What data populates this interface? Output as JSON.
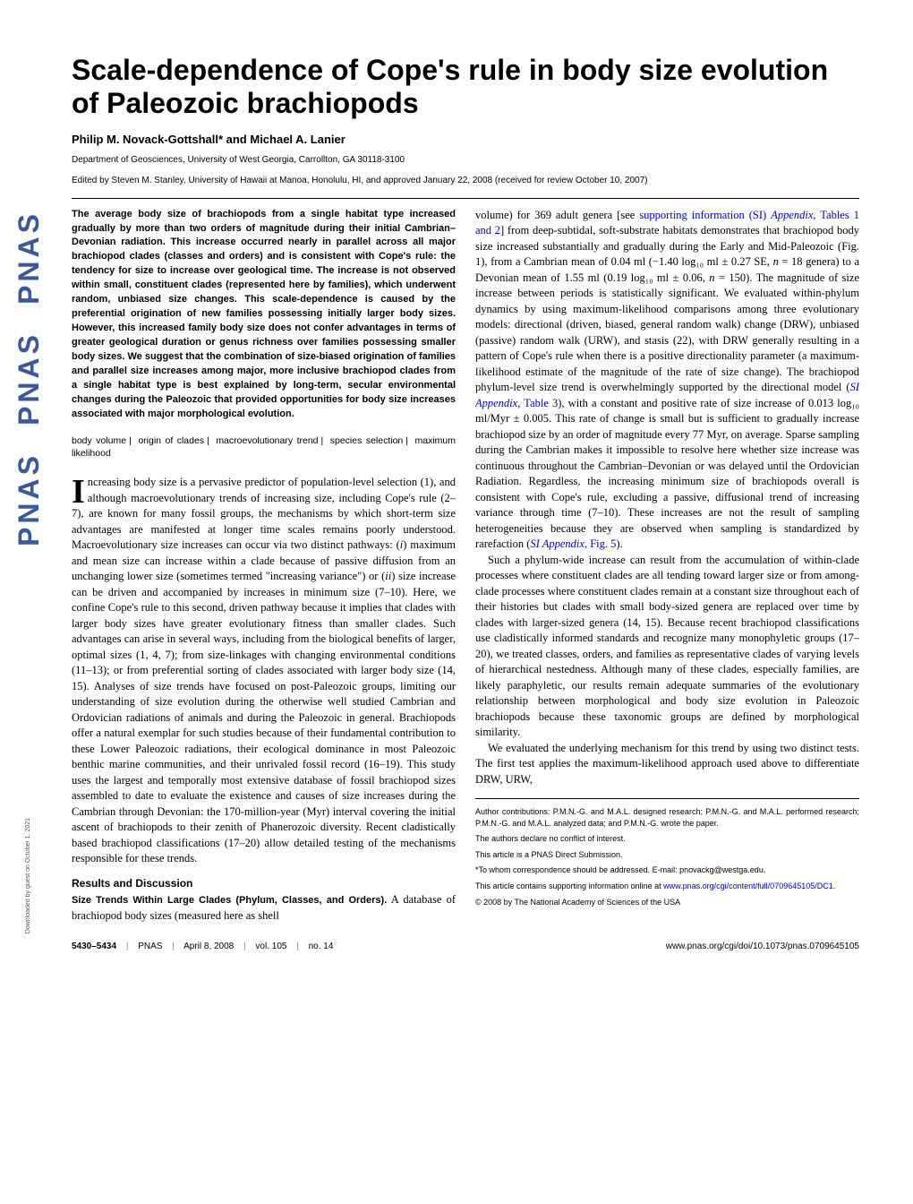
{
  "sidebar": {
    "logo_text": "PNAS"
  },
  "title": "Scale-dependence of Cope's rule in body size evolution of Paleozoic brachiopods",
  "authors": "Philip M. Novack-Gottshall* and Michael A. Lanier",
  "affiliation": "Department of Geosciences, University of West Georgia, Carrollton, GA 30118-3100",
  "edited": "Edited by Steven M. Stanley, University of Hawaii at Manoa, Honolulu, HI, and approved January 22, 2008 (received for review October 10, 2007)",
  "abstract": "The average body size of brachiopods from a single habitat type increased gradually by more than two orders of magnitude during their initial Cambrian–Devonian radiation. This increase occurred nearly in parallel across all major brachiopod clades (classes and orders) and is consistent with Cope's rule: the tendency for size to increase over geological time. The increase is not observed within small, constituent clades (represented here by families), which underwent random, unbiased size changes. This scale-dependence is caused by the preferential origination of new families possessing initially larger body sizes. However, this increased family body size does not confer advantages in terms of greater geological duration or genus richness over families possessing smaller body sizes. We suggest that the combination of size-biased origination of families and parallel size increases among major, more inclusive brachiopod clades from a single habitat type is best explained by long-term, secular environmental changes during the Paleozoic that provided opportunities for body size increases associated with major morphological evolution.",
  "keywords": [
    "body volume",
    "origin of clades",
    "macroevolutionary trend",
    "species selection",
    "maximum likelihood"
  ],
  "left_body": {
    "p1a": "ncreasing body size is a pervasive predictor of population-level selection (1), and although macroevolutionary trends of increasing size, including Cope's rule (2–7), are known for many fossil groups, the mechanisms by which short-term size advantages are manifested at longer time scales remains poorly understood. Macroevolutionary size increases can occur via two distinct pathways: (",
    "p1_i1": "i",
    "p1b": ") maximum and mean size can increase within a clade because of passive diffusion from an unchanging lower size (sometimes termed \"increasing variance\") or (",
    "p1_i2": "ii",
    "p1c": ") size increase can be driven and accompanied by increases in minimum size (7–10). Here, we confine Cope's rule to this second, driven pathway because it implies that clades with larger body sizes have greater evolutionary fitness than smaller clades. Such advantages can arise in several ways, including from the biological benefits of larger, optimal sizes (1, 4, 7); from size-linkages with changing environmental conditions (11–13); or from preferential sorting of clades associated with larger body size (14, 15). Analyses of size trends have focused on post-Paleozoic groups, limiting our understanding of size evolution during the otherwise well studied Cambrian and Ordovician radiations of animals and during the Paleozoic in general. Brachiopods offer a natural exemplar for such studies because of their fundamental contribution to these Lower Paleozoic radiations, their ecological dominance in most Paleozoic benthic marine communities, and their unrivaled fossil record (16–19). This study uses the largest and temporally most extensive database of fossil brachiopod sizes assembled to date to evaluate the existence and causes of size increases during the Cambrian through Devonian: the 170-million-year (Myr) interval covering the initial ascent of brachiopods to their zenith of Phanerozoic diversity. Recent cladistically based brachiopod classifications (17–20) allow detailed testing of the mechanisms responsible for these trends."
  },
  "results_head": "Results and Discussion",
  "subsection1": "Size Trends Within Large Clades (Phylum, Classes, and Orders).",
  "subsection1_tail": " A database of brachiopod body sizes (measured here as shell",
  "right_body": {
    "p1a": "volume) for 369 adult genera [see ",
    "link1": "supporting information (SI) ",
    "link1b": "Appendix",
    "link1c": ", Tables 1 and 2",
    "p1b": "] from deep-subtidal, soft-substrate habitats demonstrates that brachiopod body size increased substantially and gradually during the Early and Mid-Paleozoic (Fig. 1), from a Cambrian mean of 0.04 ml (−1.40 log₁₀ ml ± 0.27 SE, ",
    "p1_n1": "n",
    "p1b2": " = 18 genera) to a Devonian mean of 1.55 ml (0.19 log₁₀ ml ± 0.06, ",
    "p1_n2": "n",
    "p1b3": " = 150). The magnitude of size increase between periods is statistically significant. We evaluated within-phylum dynamics by using maximum-likelihood comparisons among three evolutionary models: directional (driven, biased, general random walk) change (DRW), unbiased (passive) random walk (URW), and stasis (22), with DRW generally resulting in a pattern of Cope's rule when there is a positive directionality parameter (a maximum-likelihood estimate of the magnitude of the rate of size change). The brachiopod phylum-level size trend is overwhelmingly supported by the directional model (",
    "link2": "SI Appendix",
    "link2b": ", Table 3",
    "p1d": "), with a constant and positive rate of size increase of 0.013 log₁₀ ml/Myr ± 0.005. This rate of change is small but is sufficient to gradually increase brachiopod size by an order of magnitude every 77 Myr, on average. Sparse sampling during the Cambrian makes it impossible to resolve here whether size increase was continuous throughout the Cambrian–Devonian or was delayed until the Ordovician Radiation. Regardless, the increasing minimum size of brachiopods overall is consistent with Cope's rule, excluding a passive, diffusional trend of increasing variance through time (7–10). These increases are not the result of sampling heterogeneities because they are observed when sampling is standardized by rarefaction (",
    "link3": "SI Appendix",
    "link3b": ", Fig. 5",
    "p1e": ").",
    "p2": "Such a phylum-wide increase can result from the accumulation of within-clade processes where constituent clades are all tending toward larger size or from among-clade processes where constituent clades remain at a constant size throughout each of their histories but clades with small body-sized genera are replaced over time by clades with larger-sized genera (14, 15). Because recent brachiopod classifications use cladistically informed standards and recognize many monophyletic groups (17–20), we treated classes, orders, and families as representative clades of varying levels of hierarchical nestedness. Although many of these clades, especially families, are likely paraphyletic, our results remain adequate summaries of the evolutionary relationship between morphological and body size evolution in Paleozoic brachiopods because these taxonomic groups are defined by morphological similarity.",
    "p3": "We evaluated the underlying mechanism for this trend by using two distinct tests. The first test applies the maximum-likelihood approach used above to differentiate DRW, URW,"
  },
  "footnotes": {
    "f1": "Author contributions: P.M.N.-G. and M.A.L. designed research; P.M.N.-G. and M.A.L. performed research; P.M.N.-G. and M.A.L. analyzed data; and P.M.N.-G. wrote the paper.",
    "f2": "The authors declare no conflict of interest.",
    "f3": "This article is a PNAS Direct Submission.",
    "f4": "*To whom correspondence should be addressed. E-mail: pnovackg@westga.edu.",
    "f5a": "This article contains supporting information online at ",
    "f5_link": "www.pnas.org/cgi/content/full/0709645105/DC1",
    "f5b": ".",
    "f6": "© 2008 by The National Academy of Sciences of the USA"
  },
  "footer": {
    "pages": "5430–5434",
    "journal": "PNAS",
    "date": "April 8, 2008",
    "vol": "vol. 105",
    "no": "no. 14",
    "url": "www.pnas.org/cgi/doi/10.1073/pnas.0709645105"
  },
  "download_note": "Downloaded by guest on October 1, 2021",
  "colors": {
    "link": "#0000cc",
    "logo": "#3b5998"
  }
}
